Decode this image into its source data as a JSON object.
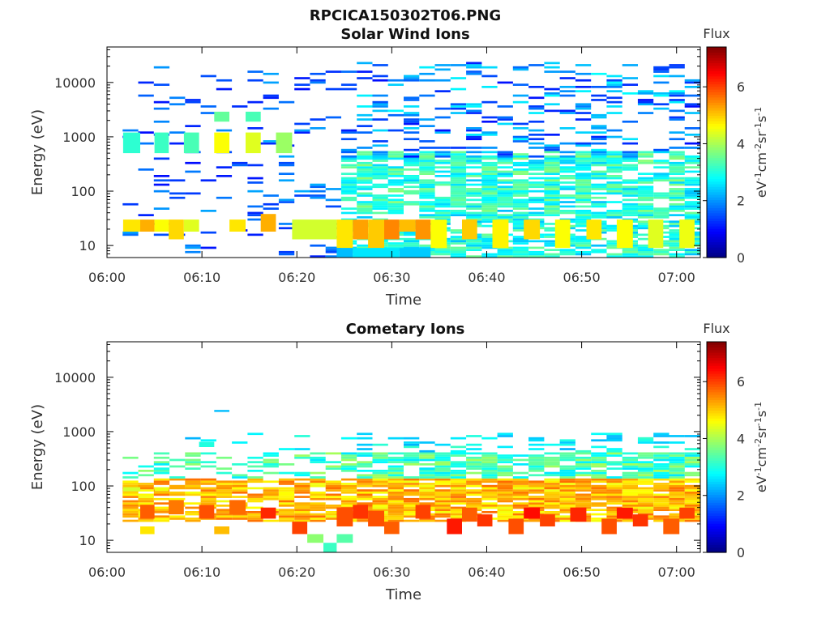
{
  "figure_title": "RPCICA150302T06.PNG",
  "colormap": [
    "#00007f",
    "#0000ff",
    "#007fff",
    "#00ffff",
    "#7fff7f",
    "#ffff00",
    "#ff7f00",
    "#ff0000",
    "#7f0000"
  ],
  "chart_data": [
    {
      "type": "heatmap",
      "title": "Solar Wind Ions",
      "xlabel": "Time",
      "ylabel": "Energy (eV)",
      "x_ticks": [
        "06:00",
        "06:10",
        "06:20",
        "06:30",
        "06:40",
        "06:50",
        "07:00"
      ],
      "x_tick_minutes": [
        0,
        10,
        20,
        30,
        40,
        50,
        60
      ],
      "xlim_minutes": [
        0,
        62.5
      ],
      "y_scale": "log",
      "ylim": [
        6,
        45000
      ],
      "y_ticks": [
        "10",
        "100",
        "1000",
        "10000"
      ],
      "y_tick_values": [
        10,
        100,
        1000,
        10000
      ],
      "colorbar": {
        "title": "Flux",
        "label": "eV-1cm-2sr-1s-1",
        "range": [
          0,
          7.4
        ],
        "ticks": [
          "0",
          "2",
          "4",
          "6"
        ],
        "tick_values": [
          0,
          2,
          4,
          6
        ]
      },
      "highlights": [
        {
          "t0": 1.7,
          "t1": 3.5,
          "e0": 18,
          "e1": 30,
          "v": 4.8
        },
        {
          "t0": 3.5,
          "t1": 5.0,
          "e0": 18,
          "e1": 30,
          "v": 5.2
        },
        {
          "t0": 5.0,
          "t1": 6.5,
          "e0": 18,
          "e1": 30,
          "v": 4.6
        },
        {
          "t0": 6.5,
          "t1": 8.1,
          "e0": 13,
          "e1": 30,
          "v": 4.9
        },
        {
          "t0": 8.1,
          "t1": 9.7,
          "e0": 18,
          "e1": 30,
          "v": 4.4
        },
        {
          "t0": 12.9,
          "t1": 14.6,
          "e0": 18,
          "e1": 30,
          "v": 4.8
        },
        {
          "t0": 16.2,
          "t1": 17.8,
          "e0": 18,
          "e1": 38,
          "v": 5.2
        },
        {
          "t0": 19.5,
          "t1": 24.2,
          "e0": 13,
          "e1": 30,
          "v": 4.3
        },
        {
          "t0": 24.2,
          "t1": 25.9,
          "e0": 9,
          "e1": 30,
          "v": 4.8
        },
        {
          "t0": 25.9,
          "t1": 27.5,
          "e0": 13,
          "e1": 30,
          "v": 5.3
        },
        {
          "t0": 27.5,
          "t1": 29.2,
          "e0": 9,
          "e1": 30,
          "v": 5.0
        },
        {
          "t0": 29.2,
          "t1": 30.8,
          "e0": 13,
          "e1": 30,
          "v": 5.5
        },
        {
          "t0": 30.8,
          "t1": 32.5,
          "e0": 18,
          "e1": 30,
          "v": 5.1
        },
        {
          "t0": 32.5,
          "t1": 34.1,
          "e0": 13,
          "e1": 30,
          "v": 5.4
        },
        {
          "t0": 34.1,
          "t1": 35.8,
          "e0": 9,
          "e1": 30,
          "v": 4.6
        },
        {
          "t0": 37.4,
          "t1": 39.0,
          "e0": 13,
          "e1": 30,
          "v": 5.0
        },
        {
          "t0": 40.6,
          "t1": 42.3,
          "e0": 9,
          "e1": 30,
          "v": 4.7
        },
        {
          "t0": 43.9,
          "t1": 45.6,
          "e0": 13,
          "e1": 30,
          "v": 4.9
        },
        {
          "t0": 47.2,
          "t1": 48.8,
          "e0": 9,
          "e1": 30,
          "v": 4.6
        },
        {
          "t0": 50.5,
          "t1": 52.1,
          "e0": 13,
          "e1": 30,
          "v": 4.8
        },
        {
          "t0": 53.7,
          "t1": 55.4,
          "e0": 9,
          "e1": 30,
          "v": 4.6
        },
        {
          "t0": 57.0,
          "t1": 58.6,
          "e0": 9,
          "e1": 30,
          "v": 4.4
        },
        {
          "t0": 60.3,
          "t1": 61.9,
          "e0": 9,
          "e1": 30,
          "v": 4.5
        },
        {
          "t0": 24.2,
          "t1": 25.9,
          "e0": 5.5,
          "e1": 9,
          "v": 2.3
        },
        {
          "t0": 25.9,
          "t1": 30.8,
          "e0": 5.5,
          "e1": 9,
          "v": 2.6
        },
        {
          "t0": 30.8,
          "t1": 34.1,
          "e0": 5.5,
          "e1": 9,
          "v": 2.4
        },
        {
          "t0": 1.7,
          "t1": 3.5,
          "e0": 500,
          "e1": 1200,
          "v": 3.1
        },
        {
          "t0": 5.0,
          "t1": 6.5,
          "e0": 500,
          "e1": 1200,
          "v": 3.2
        },
        {
          "t0": 8.1,
          "t1": 9.7,
          "e0": 500,
          "e1": 1200,
          "v": 3.3
        },
        {
          "t0": 11.3,
          "t1": 12.9,
          "e0": 500,
          "e1": 1200,
          "v": 4.6
        },
        {
          "t0": 14.6,
          "t1": 16.2,
          "e0": 500,
          "e1": 1200,
          "v": 4.4
        },
        {
          "t0": 17.8,
          "t1": 19.5,
          "e0": 500,
          "e1": 1200,
          "v": 3.9
        },
        {
          "t0": 11.3,
          "t1": 12.9,
          "e0": 1900,
          "e1": 2900,
          "v": 3.5
        },
        {
          "t0": 14.6,
          "t1": 16.2,
          "e0": 1900,
          "e1": 2900,
          "v": 3.3
        }
      ]
    },
    {
      "type": "heatmap",
      "title": "Cometary Ions",
      "xlabel": "Time",
      "ylabel": "Energy (eV)",
      "x_ticks": [
        "06:00",
        "06:10",
        "06:20",
        "06:30",
        "06:40",
        "06:50",
        "07:00"
      ],
      "x_tick_minutes": [
        0,
        10,
        20,
        30,
        40,
        50,
        60
      ],
      "xlim_minutes": [
        0,
        62.5
      ],
      "y_scale": "log",
      "ylim": [
        6,
        45000
      ],
      "y_ticks": [
        "10",
        "100",
        "1000",
        "10000"
      ],
      "y_tick_values": [
        10,
        100,
        1000,
        10000
      ],
      "colorbar": {
        "title": "Flux",
        "label": "eV-1cm-2sr-1s-1",
        "range": [
          0,
          7.4
        ],
        "ticks": [
          "0",
          "2",
          "4",
          "6"
        ],
        "tick_values": [
          0,
          2,
          4,
          6
        ]
      },
      "highlights": [
        {
          "t0": 3.5,
          "t1": 5.0,
          "e0": 25,
          "e1": 45,
          "v": 5.8
        },
        {
          "t0": 6.5,
          "t1": 8.1,
          "e0": 30,
          "e1": 55,
          "v": 5.6
        },
        {
          "t0": 9.7,
          "t1": 11.3,
          "e0": 25,
          "e1": 45,
          "v": 5.9
        },
        {
          "t0": 12.9,
          "t1": 14.6,
          "e0": 30,
          "e1": 55,
          "v": 5.7
        },
        {
          "t0": 16.2,
          "t1": 17.8,
          "e0": 25,
          "e1": 40,
          "v": 6.2
        },
        {
          "t0": 19.5,
          "t1": 21.1,
          "e0": 13,
          "e1": 22,
          "v": 6.0
        },
        {
          "t0": 24.2,
          "t1": 25.9,
          "e0": 18,
          "e1": 40,
          "v": 5.9
        },
        {
          "t0": 25.9,
          "t1": 27.5,
          "e0": 25,
          "e1": 45,
          "v": 6.1
        },
        {
          "t0": 27.5,
          "t1": 29.2,
          "e0": 18,
          "e1": 35,
          "v": 5.9
        },
        {
          "t0": 29.2,
          "t1": 30.8,
          "e0": 13,
          "e1": 22,
          "v": 5.8
        },
        {
          "t0": 32.5,
          "t1": 34.1,
          "e0": 25,
          "e1": 45,
          "v": 6.0
        },
        {
          "t0": 35.8,
          "t1": 37.4,
          "e0": 13,
          "e1": 25,
          "v": 6.3
        },
        {
          "t0": 37.4,
          "t1": 39.0,
          "e0": 22,
          "e1": 40,
          "v": 5.8
        },
        {
          "t0": 39.0,
          "t1": 40.6,
          "e0": 18,
          "e1": 30,
          "v": 6.1
        },
        {
          "t0": 42.3,
          "t1": 43.9,
          "e0": 13,
          "e1": 25,
          "v": 5.9
        },
        {
          "t0": 43.9,
          "t1": 45.6,
          "e0": 25,
          "e1": 40,
          "v": 6.4
        },
        {
          "t0": 45.6,
          "t1": 47.2,
          "e0": 18,
          "e1": 30,
          "v": 6.0
        },
        {
          "t0": 48.8,
          "t1": 50.5,
          "e0": 22,
          "e1": 40,
          "v": 6.2
        },
        {
          "t0": 52.1,
          "t1": 53.7,
          "e0": 13,
          "e1": 25,
          "v": 5.9
        },
        {
          "t0": 53.7,
          "t1": 55.4,
          "e0": 25,
          "e1": 40,
          "v": 6.3
        },
        {
          "t0": 55.4,
          "t1": 57.0,
          "e0": 18,
          "e1": 30,
          "v": 6.1
        },
        {
          "t0": 58.6,
          "t1": 60.3,
          "e0": 13,
          "e1": 25,
          "v": 5.8
        },
        {
          "t0": 60.3,
          "t1": 61.9,
          "e0": 25,
          "e1": 40,
          "v": 6.0
        },
        {
          "t0": 3.5,
          "t1": 5.0,
          "e0": 13,
          "e1": 18,
          "v": 4.8
        },
        {
          "t0": 11.3,
          "t1": 12.9,
          "e0": 13,
          "e1": 18,
          "v": 5.1
        },
        {
          "t0": 21.1,
          "t1": 22.8,
          "e0": 9,
          "e1": 13,
          "v": 3.8
        },
        {
          "t0": 22.8,
          "t1": 24.2,
          "e0": 5.5,
          "e1": 9,
          "v": 3.2
        },
        {
          "t0": 24.2,
          "t1": 25.9,
          "e0": 9,
          "e1": 13,
          "v": 3.4
        },
        {
          "t0": 9.7,
          "t1": 11.3,
          "e0": 520,
          "e1": 650,
          "v": 3.0
        },
        {
          "t0": 11.3,
          "t1": 12.9,
          "e0": 2300,
          "e1": 2500,
          "v": 2.3
        },
        {
          "t0": 1.7,
          "t1": 3.5,
          "e0": 80,
          "e1": 95,
          "v": 4.3
        },
        {
          "t0": 5.0,
          "t1": 6.5,
          "e0": 80,
          "e1": 95,
          "v": 4.5
        }
      ]
    }
  ]
}
